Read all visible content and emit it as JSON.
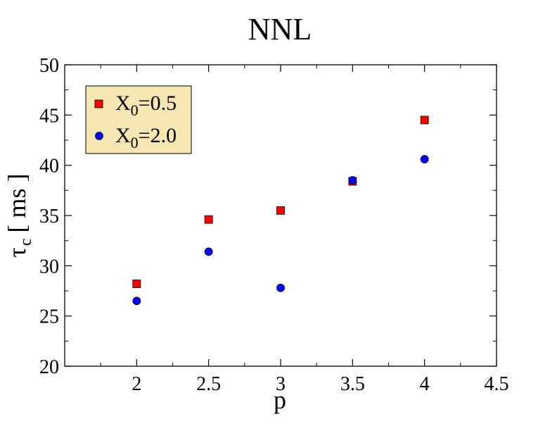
{
  "chart_data": {
    "type": "scatter",
    "title": "NNL",
    "xlabel": "p",
    "ylabel_symbol": "τ",
    "ylabel_subscript": "c",
    "ylabel_unit": "[ ms ]",
    "xlim": [
      1.5,
      4.5
    ],
    "ylim": [
      20,
      50
    ],
    "xticks": [
      2,
      2.5,
      3,
      3.5,
      4,
      4.5
    ],
    "xtick_labels": [
      "2",
      "2.5",
      "3",
      "3.5",
      "4",
      "4.5"
    ],
    "yticks": [
      20,
      25,
      30,
      35,
      40,
      45,
      50
    ],
    "ytick_labels": [
      "20",
      "25",
      "30",
      "35",
      "40",
      "45",
      "50"
    ],
    "grid": false,
    "legend_position": "top-left",
    "legend_bg": "#f5e6b3",
    "series": [
      {
        "name_main": "X",
        "name_sub": "0",
        "name_rest": "=0.5",
        "marker": "square",
        "color": "#ff0000",
        "x": [
          2,
          2.5,
          3,
          3.5,
          4
        ],
        "y": [
          28.2,
          34.6,
          35.5,
          38.4,
          44.5
        ]
      },
      {
        "name_main": "X",
        "name_sub": "0",
        "name_rest": "=2.0",
        "marker": "circle",
        "color": "#0000ff",
        "x": [
          2,
          2.5,
          3,
          3.5,
          4
        ],
        "y": [
          26.5,
          31.4,
          27.8,
          38.5,
          40.6
        ]
      }
    ]
  }
}
